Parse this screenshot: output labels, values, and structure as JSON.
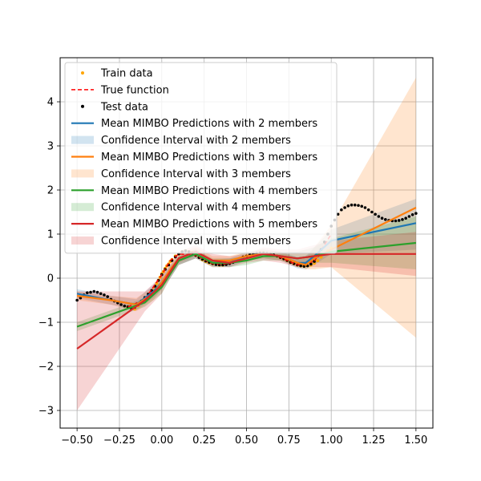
{
  "chart_data": {
    "type": "line",
    "xlim": [
      -0.6,
      1.6
    ],
    "ylim": [
      -3.4,
      5.0
    ],
    "x_ticks": [
      -0.5,
      -0.25,
      0.0,
      0.25,
      0.5,
      0.75,
      1.0,
      1.25,
      1.5
    ],
    "x_tick_labels": [
      "−0.50",
      "−0.25",
      "0.00",
      "0.25",
      "0.50",
      "0.75",
      "1.00",
      "1.25",
      "1.50"
    ],
    "y_ticks": [
      -3,
      -2,
      -1,
      0,
      1,
      2,
      3,
      4
    ],
    "y_tick_labels": [
      "−3",
      "−2",
      "−1",
      "0",
      "1",
      "2",
      "3",
      "4"
    ],
    "grid": true,
    "legend_position": "top-left",
    "legend": [
      {
        "label": "Train data",
        "kind": "marker",
        "color": "#ffa500"
      },
      {
        "label": "True function",
        "kind": "dashed",
        "color": "#ff0000"
      },
      {
        "label": "Test data",
        "kind": "marker",
        "color": "#000000"
      },
      {
        "label": "Mean MIMBO Predictions with 2 members",
        "kind": "line",
        "color": "#1f77b4"
      },
      {
        "label": "Confidence Interval with 2 members",
        "kind": "patch",
        "color": "#1f77b4"
      },
      {
        "label": "Mean MIMBO Predictions with 3 members",
        "kind": "line",
        "color": "#ff7f0e"
      },
      {
        "label": "Confidence Interval with 3 members",
        "kind": "patch",
        "color": "#ff7f0e"
      },
      {
        "label": "Mean MIMBO Predictions with 4 members",
        "kind": "line",
        "color": "#2ca02c"
      },
      {
        "label": "Confidence Interval with 4 members",
        "kind": "patch",
        "color": "#2ca02c"
      },
      {
        "label": "Mean MIMBO Predictions with 5 members",
        "kind": "line",
        "color": "#d62728"
      },
      {
        "label": "Confidence Interval with 5 members",
        "kind": "patch",
        "color": "#d62728"
      }
    ],
    "series": [
      {
        "name": "Mean MIMBO Predictions with 2 members",
        "color": "#1f77b4",
        "x": [
          -0.5,
          -0.3,
          -0.15,
          -0.05,
          0.0,
          0.05,
          0.1,
          0.2,
          0.3,
          0.4,
          0.5,
          0.6,
          0.7,
          0.8,
          0.85,
          0.9,
          1.0,
          1.5
        ],
        "y": [
          -0.35,
          -0.5,
          -0.6,
          -0.3,
          -0.1,
          0.15,
          0.4,
          0.55,
          0.35,
          0.35,
          0.5,
          0.55,
          0.5,
          0.35,
          0.35,
          0.5,
          0.85,
          1.25
        ],
        "lower": [
          -0.45,
          -0.6,
          -0.72,
          -0.45,
          -0.25,
          0.0,
          0.3,
          0.45,
          0.28,
          0.25,
          0.4,
          0.45,
          0.4,
          0.22,
          0.2,
          0.3,
          0.55,
          0.65
        ],
        "upper": [
          -0.25,
          -0.4,
          -0.48,
          -0.15,
          0.05,
          0.3,
          0.5,
          0.65,
          0.42,
          0.45,
          0.6,
          0.65,
          0.6,
          0.48,
          0.5,
          0.7,
          1.1,
          1.8
        ]
      },
      {
        "name": "Mean MIMBO Predictions with 3 members",
        "color": "#ff7f0e",
        "x": [
          -0.5,
          -0.3,
          -0.15,
          -0.05,
          0.0,
          0.05,
          0.1,
          0.2,
          0.3,
          0.4,
          0.5,
          0.6,
          0.7,
          0.8,
          0.85,
          0.9,
          1.0,
          1.5
        ],
        "y": [
          -0.4,
          -0.5,
          -0.6,
          -0.35,
          -0.1,
          0.2,
          0.45,
          0.6,
          0.4,
          0.4,
          0.5,
          0.55,
          0.5,
          0.35,
          0.3,
          0.45,
          0.65,
          1.6
        ],
        "lower": [
          -0.5,
          -0.6,
          -0.75,
          -0.5,
          -0.25,
          0.05,
          0.35,
          0.5,
          0.3,
          0.3,
          0.4,
          0.45,
          0.4,
          0.25,
          0.2,
          0.2,
          0.25,
          -1.35
        ],
        "upper": [
          -0.3,
          -0.4,
          -0.45,
          -0.2,
          0.05,
          0.35,
          0.55,
          0.7,
          0.5,
          0.5,
          0.6,
          0.65,
          0.6,
          0.45,
          0.45,
          0.7,
          1.2,
          4.55
        ]
      },
      {
        "name": "Mean MIMBO Predictions with 4 members",
        "color": "#2ca02c",
        "x": [
          -0.5,
          -0.1,
          0.0,
          0.05,
          0.1,
          0.2,
          0.3,
          0.4,
          0.5,
          0.6,
          0.7,
          0.8,
          0.9,
          1.0,
          1.5
        ],
        "y": [
          -1.1,
          -0.55,
          -0.2,
          0.1,
          0.4,
          0.55,
          0.35,
          0.35,
          0.4,
          0.5,
          0.5,
          0.45,
          0.5,
          0.6,
          0.8
        ],
        "lower": [
          -1.2,
          -0.65,
          -0.35,
          0.0,
          0.3,
          0.45,
          0.25,
          0.25,
          0.3,
          0.4,
          0.4,
          0.3,
          0.35,
          0.35,
          0.2
        ],
        "upper": [
          -1.0,
          -0.45,
          -0.05,
          0.25,
          0.5,
          0.65,
          0.45,
          0.45,
          0.5,
          0.6,
          0.6,
          0.6,
          0.7,
          0.9,
          1.4
        ]
      },
      {
        "name": "Mean MIMBO Predictions with 5 members",
        "color": "#d62728",
        "x": [
          -0.5,
          -0.1,
          0.0,
          0.05,
          0.1,
          0.2,
          0.3,
          0.4,
          0.5,
          0.6,
          0.7,
          0.8,
          0.9,
          1.0,
          1.5
        ],
        "y": [
          -1.6,
          -0.5,
          -0.15,
          0.15,
          0.45,
          0.6,
          0.4,
          0.35,
          0.45,
          0.55,
          0.5,
          0.45,
          0.5,
          0.55,
          0.55
        ],
        "lower": [
          -3.0,
          -0.75,
          -0.35,
          0.0,
          0.3,
          0.45,
          0.25,
          0.25,
          0.35,
          0.4,
          0.35,
          0.25,
          0.25,
          0.25,
          0.05
        ],
        "upper": [
          -0.3,
          -0.3,
          0.05,
          0.3,
          0.6,
          0.75,
          0.55,
          0.5,
          0.55,
          0.7,
          0.65,
          0.65,
          0.75,
          0.85,
          1.05
        ]
      }
    ],
    "train_data": {
      "color": "#ffa500",
      "x": [
        -0.2,
        -0.18,
        -0.16,
        -0.14,
        -0.12,
        -0.1,
        -0.08,
        -0.06,
        -0.05,
        -0.04,
        -0.03,
        -0.02,
        -0.01,
        0.0,
        0.01,
        0.02,
        0.03,
        0.04,
        0.05,
        0.06,
        0.08,
        0.1,
        0.12,
        0.14,
        0.16,
        0.18,
        0.2,
        0.22,
        0.24,
        0.26,
        0.28,
        0.3,
        0.32,
        0.34,
        0.36,
        0.38,
        0.4,
        0.42,
        0.44,
        0.46,
        0.48,
        0.5,
        0.52,
        0.54,
        0.56,
        0.58,
        0.6,
        0.62,
        0.64,
        0.66,
        0.68,
        0.7,
        0.72,
        0.74,
        0.76,
        0.78,
        0.8,
        0.82,
        0.84,
        0.86,
        0.88,
        0.9,
        0.92,
        0.94,
        0.96,
        0.98,
        1.0
      ],
      "y": [
        -0.65,
        -0.68,
        -0.7,
        -0.62,
        -0.55,
        -0.5,
        -0.42,
        -0.35,
        -0.28,
        -0.2,
        -0.12,
        -0.05,
        0.02,
        0.1,
        0.15,
        0.22,
        0.28,
        0.32,
        0.38,
        0.42,
        0.5,
        0.55,
        0.6,
        0.62,
        0.6,
        0.58,
        0.52,
        0.48,
        0.42,
        0.38,
        0.35,
        0.33,
        0.32,
        0.3,
        0.3,
        0.32,
        0.35,
        0.38,
        0.42,
        0.45,
        0.48,
        0.5,
        0.53,
        0.55,
        0.56,
        0.57,
        0.57,
        0.56,
        0.55,
        0.53,
        0.5,
        0.47,
        0.44,
        0.4,
        0.36,
        0.33,
        0.3,
        0.28,
        0.27,
        0.28,
        0.3,
        0.34,
        0.4,
        0.48,
        0.55,
        0.62,
        0.68
      ]
    },
    "test_data": {
      "color": "#000000",
      "x": [
        -0.5,
        -0.48,
        -0.46,
        -0.44,
        -0.42,
        -0.4,
        -0.38,
        -0.36,
        -0.34,
        -0.32,
        -0.3,
        -0.28,
        -0.26,
        -0.24,
        -0.22,
        -0.2,
        -0.18,
        -0.16,
        -0.14,
        -0.12,
        -0.1,
        -0.08,
        -0.06,
        -0.04,
        -0.02,
        0.0,
        0.02,
        0.04,
        0.06,
        0.08,
        0.1,
        0.12,
        0.14,
        0.16,
        0.18,
        0.2,
        0.22,
        0.24,
        0.26,
        0.28,
        0.3,
        0.32,
        0.34,
        0.36,
        0.38,
        0.4,
        0.42,
        0.44,
        0.46,
        0.48,
        0.5,
        0.52,
        0.54,
        0.56,
        0.58,
        0.6,
        0.62,
        0.64,
        0.66,
        0.68,
        0.7,
        0.72,
        0.74,
        0.76,
        0.78,
        0.8,
        0.82,
        0.84,
        0.86,
        0.88,
        0.9,
        0.92,
        0.94,
        0.96,
        0.98,
        1.0,
        1.02,
        1.04,
        1.06,
        1.08,
        1.1,
        1.12,
        1.14,
        1.16,
        1.18,
        1.2,
        1.22,
        1.24,
        1.26,
        1.28,
        1.3,
        1.32,
        1.34,
        1.36,
        1.38,
        1.4,
        1.42,
        1.44,
        1.46,
        1.48,
        1.5
      ],
      "y": [
        -0.5,
        -0.45,
        -0.38,
        -0.33,
        -0.32,
        -0.3,
        -0.32,
        -0.35,
        -0.38,
        -0.42,
        -0.48,
        -0.52,
        -0.56,
        -0.6,
        -0.63,
        -0.65,
        -0.68,
        -0.66,
        -0.6,
        -0.52,
        -0.44,
        -0.36,
        -0.28,
        -0.18,
        -0.05,
        0.08,
        0.2,
        0.3,
        0.4,
        0.48,
        0.55,
        0.6,
        0.62,
        0.6,
        0.57,
        0.52,
        0.47,
        0.43,
        0.39,
        0.36,
        0.33,
        0.31,
        0.3,
        0.3,
        0.31,
        0.33,
        0.36,
        0.4,
        0.44,
        0.48,
        0.5,
        0.53,
        0.55,
        0.56,
        0.57,
        0.57,
        0.56,
        0.55,
        0.53,
        0.5,
        0.47,
        0.44,
        0.4,
        0.36,
        0.33,
        0.3,
        0.28,
        0.27,
        0.28,
        0.32,
        0.38,
        0.5,
        0.65,
        0.82,
        1.0,
        1.18,
        1.32,
        1.45,
        1.55,
        1.6,
        1.64,
        1.66,
        1.66,
        1.65,
        1.63,
        1.6,
        1.55,
        1.5,
        1.45,
        1.4,
        1.36,
        1.33,
        1.31,
        1.3,
        1.3,
        1.31,
        1.33,
        1.36,
        1.4,
        1.44,
        1.47
      ]
    },
    "true_function": {
      "color": "#ff0000",
      "x": [
        -0.2,
        -0.1,
        0.0,
        0.05,
        0.1,
        0.2,
        0.3,
        0.4,
        0.5,
        0.6,
        0.7,
        0.8,
        0.9,
        1.0
      ],
      "y": [
        -0.65,
        -0.48,
        0.08,
        0.4,
        0.55,
        0.52,
        0.33,
        0.33,
        0.5,
        0.56,
        0.47,
        0.3,
        0.38,
        1.0
      ]
    }
  }
}
